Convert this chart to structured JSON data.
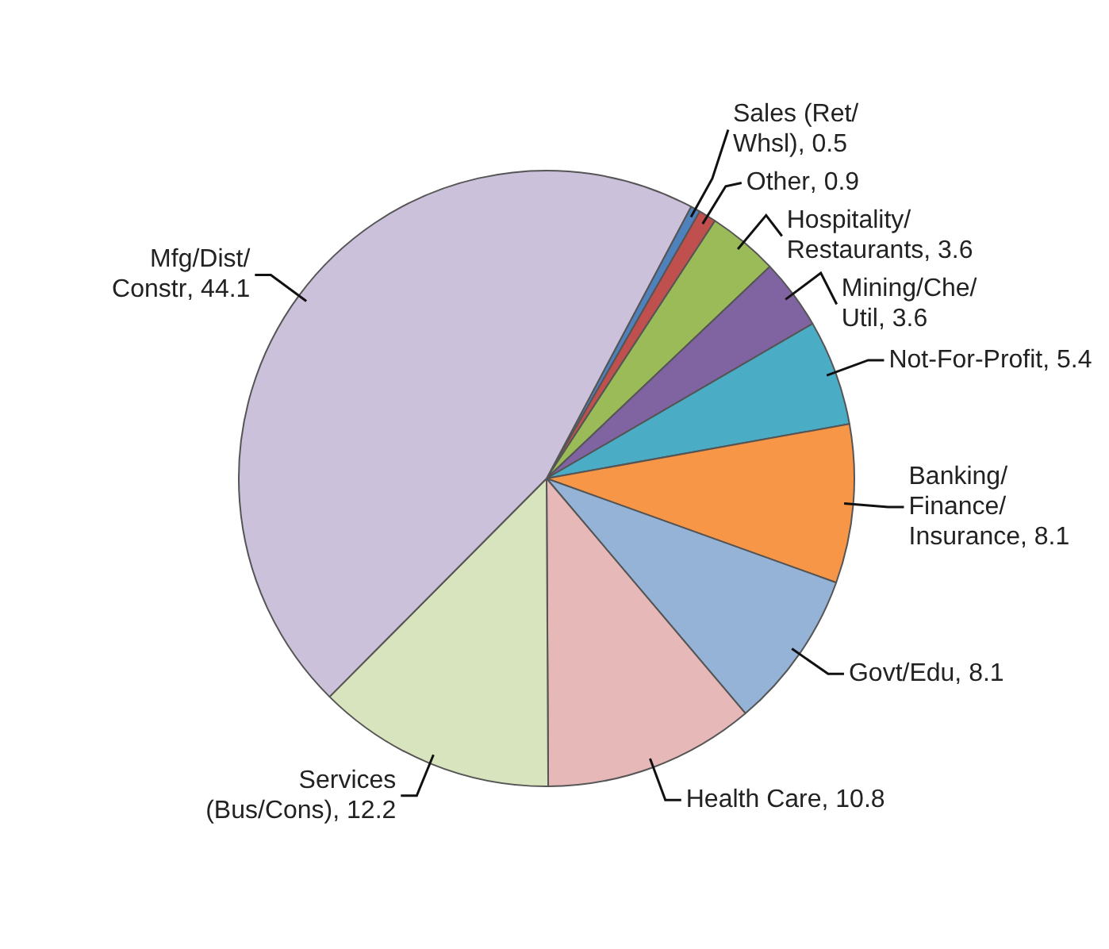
{
  "chart_data": {
    "type": "pie",
    "categories": [
      "Sales (Ret/Whsl)",
      "Other",
      "Hospitality/Restaurants",
      "Mining/Che/Util",
      "Not-For-Profit",
      "Banking/Finance/Insurance",
      "Govt/Edu",
      "Health Care",
      "Services (Bus/Cons)",
      "Mfg/Dist/Constr"
    ],
    "values": [
      0.5,
      0.9,
      3.6,
      3.6,
      5.4,
      8.1,
      8.1,
      10.8,
      12.2,
      44.1
    ],
    "colors": [
      "#4f81bd",
      "#c0504d",
      "#9bbb59",
      "#8064a2",
      "#4bacc6",
      "#f79646",
      "#95b3d7",
      "#e6b9b8",
      "#d7e4bd",
      "#ccc1da"
    ],
    "value_labels": [
      ", 0.5",
      ", 0.9",
      ", 3.6",
      ", 3.6",
      ", 5.4",
      ", 8.1",
      ", 8.1",
      ", 10.8",
      ", 12.2",
      ", 44.1"
    ],
    "legend": false
  }
}
